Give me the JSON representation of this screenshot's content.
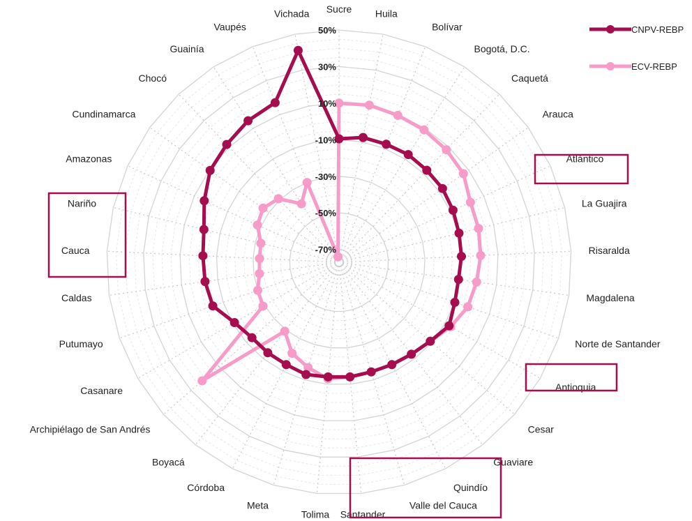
{
  "chart_data": {
    "type": "radar",
    "title": "",
    "categories": [
      "Sucre",
      "Huila",
      "Bolívar",
      "Bogotá, D.C.",
      "Caquetá",
      "Arauca",
      "Atlántico",
      "La Guajira",
      "Risaralda",
      "Magdalena",
      "Norte de Santander",
      "Antioquia",
      "Cesar",
      "Guaviare",
      "Quindío",
      "Valle del Cauca",
      "Santander",
      "Tolima",
      "Meta",
      "Córdoba",
      "Boyacá",
      "Archipiélago de San Andrés",
      "Casanare",
      "Putumayo",
      "Caldas",
      "Cauca",
      "Nariño",
      "Amazonas",
      "Cundinamarca",
      "Chocó",
      "Guainía",
      "Vaupés",
      "Vichada"
    ],
    "rlim": [
      -77,
      50
    ],
    "ticks": [
      50,
      30,
      10,
      -10,
      -30,
      -50,
      -70
    ],
    "tick_labels": [
      "50%",
      "30%",
      "10%",
      "-10%",
      "-30%",
      "-50%",
      "-70%"
    ],
    "grid": true,
    "legend_position": "top-right",
    "highlighted": [
      "Atlántico",
      "Nariño",
      "Cauca",
      "Antioquia",
      "Valle del Cauca",
      "Santander"
    ],
    "series": [
      {
        "name": "CNPV-REBP",
        "color": "#A50D4E",
        "values": [
          -9.5,
          -7.5,
          -7.5,
          -7,
          -7.5,
          -7.5,
          -8.5,
          -9.5,
          -10,
          -11,
          -10,
          -7.5,
          -11,
          -13,
          -14,
          -14.5,
          -14,
          -14,
          -13,
          -14,
          -14,
          -14,
          -11,
          -4,
          -3,
          -2.5,
          -1,
          4,
          9.5,
          12,
          15,
          17,
          41
        ]
      },
      {
        "name": "ECV-REBP",
        "color": "#F79BC9",
        "values": [
          10,
          10.5,
          9.5,
          9,
          8,
          6.5,
          2,
          1.5,
          0.5,
          -1,
          -2.5,
          -6.5,
          -11,
          -13,
          -14,
          -14.5,
          -14,
          -13,
          -17,
          -21,
          -29,
          22,
          -29,
          -30,
          -33,
          -33.5,
          -33,
          -28,
          -26,
          -29,
          -39,
          -30,
          -74
        ]
      }
    ]
  }
}
